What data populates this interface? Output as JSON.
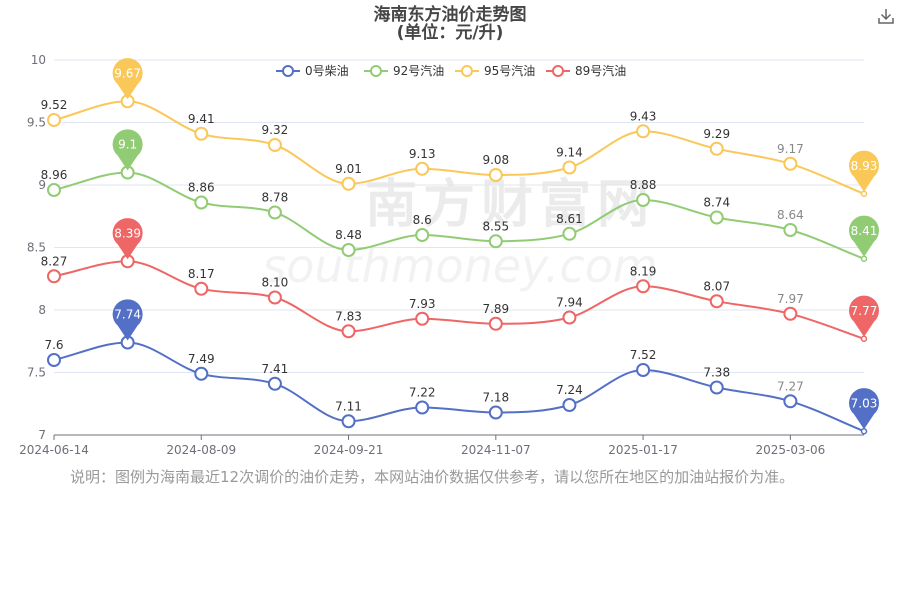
{
  "toolbar": {
    "save_icon": "download-icon"
  },
  "note": "说明：图例为海南最近12次调价的油价走势，本网站油价数据仅供参考，请以您所在地区的加油站报价为准。",
  "watermark": {
    "cn": "南方财富网",
    "en": "southmoney.com"
  },
  "chart_data": {
    "type": "line",
    "title": "海南东方油价走势图",
    "subtitle": "(单位：元/升)",
    "xlabel": "",
    "ylabel": "",
    "ylim": [
      7,
      10
    ],
    "yticks": [
      "7",
      "7.5",
      "8",
      "8.5",
      "9",
      "9.5",
      "10"
    ],
    "xtick_labels": [
      "2024-06-14",
      "2024-08-09",
      "2024-09-21",
      "2024-11-07",
      "2025-01-17",
      "2025-03-06"
    ],
    "legend_position": "top",
    "grid": true,
    "series": [
      {
        "name": "0号柴油",
        "color": "#5470c6",
        "values": [
          7.6,
          7.74,
          7.49,
          7.41,
          7.11,
          7.22,
          7.18,
          7.24,
          7.52,
          7.38,
          7.27,
          7.03
        ],
        "labels": [
          "7.6",
          "7.74",
          "7.49",
          "7.41",
          "7.11",
          "7.22",
          "7.18",
          "7.24",
          "7.52",
          "7.38",
          "7.27",
          "7.03"
        ],
        "max_index": 1,
        "min_index": 11
      },
      {
        "name": "92号汽油",
        "color": "#91cc75",
        "values": [
          8.96,
          9.1,
          8.86,
          8.78,
          8.48,
          8.6,
          8.55,
          8.61,
          8.88,
          8.74,
          8.64,
          8.41
        ],
        "labels": [
          "8.96",
          "9.1",
          "8.86",
          "8.78",
          "8.48",
          "8.6",
          "8.55",
          "8.61",
          "8.88",
          "8.74",
          "8.64",
          "8.41"
        ],
        "max_index": 1,
        "min_index": 11
      },
      {
        "name": "95号汽油",
        "color": "#fac858",
        "values": [
          9.52,
          9.67,
          9.41,
          9.32,
          9.01,
          9.13,
          9.08,
          9.14,
          9.43,
          9.29,
          9.17,
          8.93
        ],
        "labels": [
          "9.52",
          "9.67",
          "9.41",
          "9.32",
          "9.01",
          "9.13",
          "9.08",
          "9.14",
          "9.43",
          "9.29",
          "9.17",
          "8.93"
        ],
        "max_index": 1,
        "min_index": 11
      },
      {
        "name": "89号汽油",
        "color": "#ee6666",
        "values": [
          8.27,
          8.39,
          8.17,
          8.1,
          7.83,
          7.93,
          7.89,
          7.94,
          8.19,
          8.07,
          7.97,
          7.77
        ],
        "labels": [
          "8.27",
          "8.39",
          "8.17",
          "8.10",
          "7.83",
          "7.93",
          "7.89",
          "7.94",
          "8.19",
          "8.07",
          "7.97",
          "7.77"
        ],
        "max_index": 1,
        "min_index": 11
      }
    ]
  }
}
